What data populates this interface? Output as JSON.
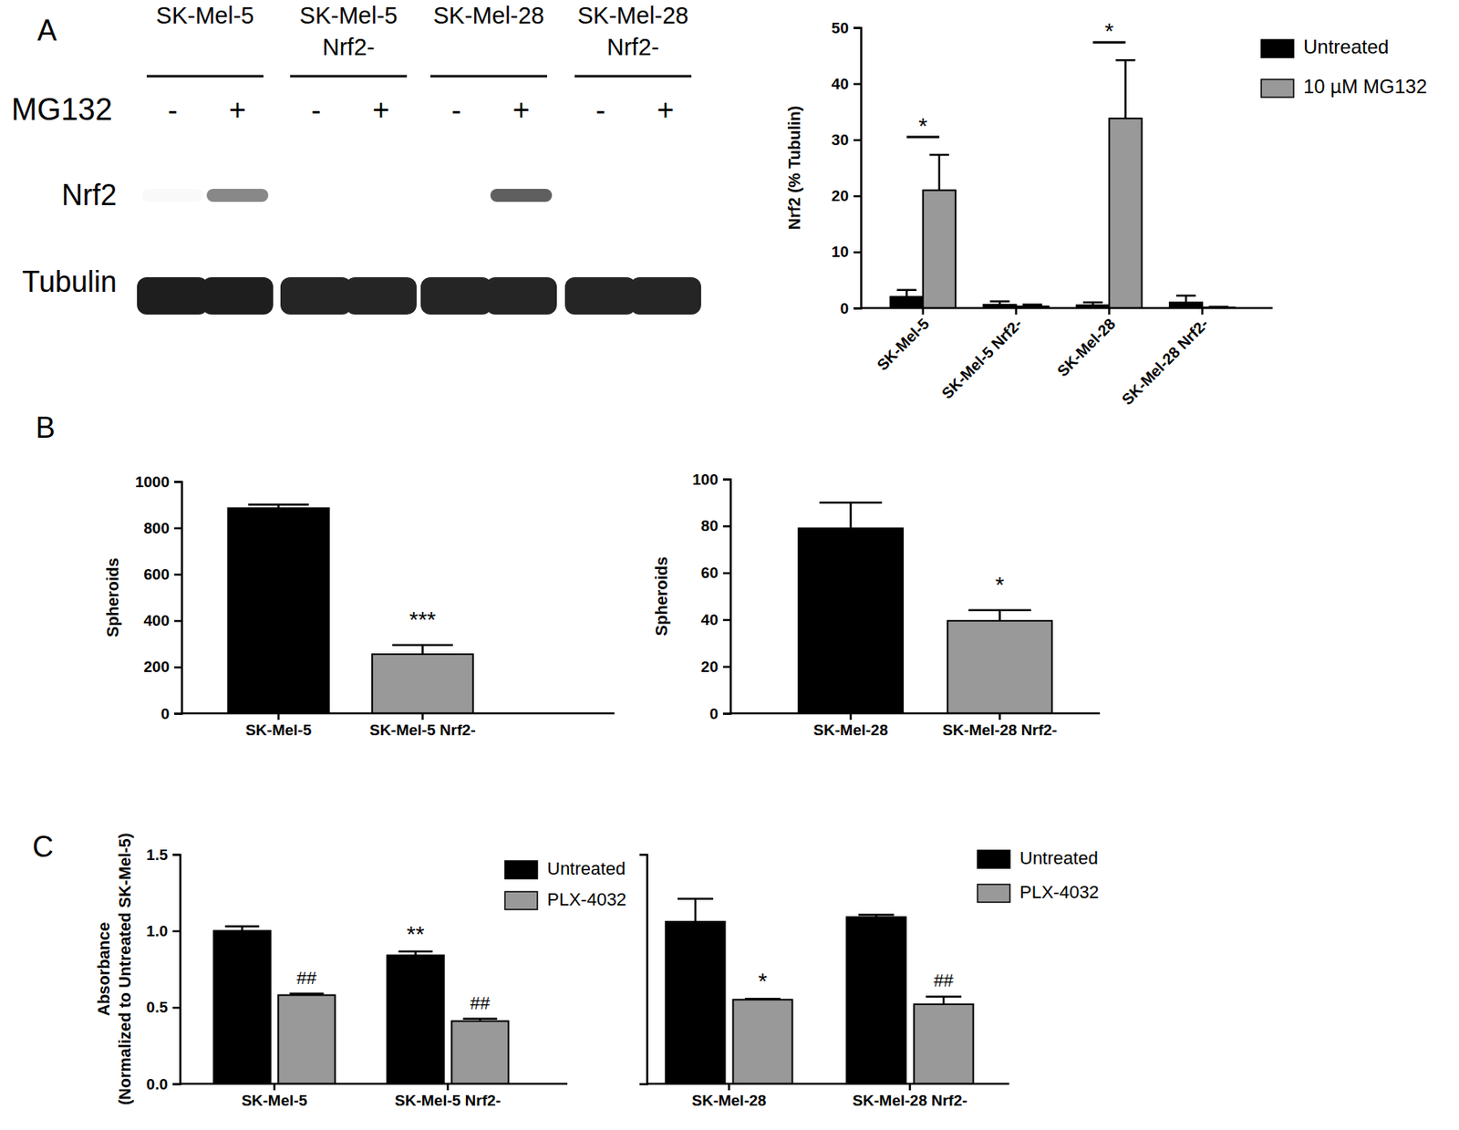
{
  "panel_labels": [
    "A",
    "B",
    "C"
  ],
  "blot": {
    "columns": [
      [
        "SK-Mel-5"
      ],
      [
        "SK-Mel-5",
        "Nrf2-"
      ],
      [
        "SK-Mel-28"
      ],
      [
        "SK-Mel-28",
        "Nrf2-"
      ]
    ],
    "treatment_label": "MG132",
    "treatment": [
      "-",
      "+",
      "-",
      "+",
      "-",
      "+",
      "-",
      "+"
    ],
    "rows": [
      {
        "label": "Nrf2",
        "intensity": [
          0.05,
          0.55,
          0,
          0,
          0,
          0.7,
          0,
          0
        ]
      },
      {
        "label": "Tubulin",
        "intensity": [
          0.9,
          0.9,
          0.88,
          0.88,
          0.88,
          0.88,
          0.88,
          0.88
        ]
      }
    ]
  },
  "chart_data": [
    {
      "type": "bar",
      "categories": [
        "SK-Mel-5",
        "SK-Mel-5 Nrf2-",
        "SK-Mel-28",
        "SK-Mel-28 Nrf2-"
      ],
      "series": [
        {
          "name": "Untreated",
          "color": "#000000",
          "values": [
            2.0,
            0.6,
            0.5,
            1.0
          ],
          "errors": [
            1.2,
            0.6,
            0.5,
            1.2
          ]
        },
        {
          "name": "10 µM MG132",
          "color": "#999999",
          "values": [
            21.0,
            0.3,
            33.8,
            0.1
          ],
          "errors": [
            6.3,
            0.3,
            10.4,
            0.1
          ]
        }
      ],
      "ylabel": "Nrf2 (% Tubulin)",
      "ylim": [
        0,
        50
      ],
      "yticks": [
        0,
        10,
        20,
        30,
        40,
        50
      ],
      "legend": "right",
      "annotations": [
        {
          "text": "*",
          "category": "SK-Mel-5"
        },
        {
          "text": "*",
          "category": "SK-Mel-28"
        }
      ]
    },
    {
      "type": "bar",
      "categories": [
        "SK-Mel-5",
        "SK-Mel-5 Nrf2-"
      ],
      "values": [
        885,
        255
      ],
      "errors": [
        15,
        40
      ],
      "colors": [
        "#000000",
        "#999999"
      ],
      "ylabel": "Spheroids",
      "ylim": [
        0,
        1000
      ],
      "yticks": [
        0,
        200,
        400,
        600,
        800,
        1000
      ],
      "annotations": [
        {
          "text": "***",
          "category": "SK-Mel-5 Nrf2-"
        }
      ]
    },
    {
      "type": "bar",
      "categories": [
        "SK-Mel-28",
        "SK-Mel-28 Nrf2-"
      ],
      "values": [
        79,
        39.5
      ],
      "errors": [
        11,
        4.5
      ],
      "colors": [
        "#000000",
        "#999999"
      ],
      "ylabel": "Spheroids",
      "ylim": [
        0,
        100
      ],
      "yticks": [
        0,
        20,
        40,
        60,
        80,
        100
      ],
      "annotations": [
        {
          "text": "*",
          "category": "SK-Mel-28 Nrf2-"
        }
      ]
    },
    {
      "type": "bar",
      "categories": [
        "SK-Mel-5",
        "SK-Mel-5 Nrf2-"
      ],
      "series": [
        {
          "name": "Untreated",
          "color": "#000000",
          "values": [
            1.0,
            0.84
          ],
          "errors": [
            0.03,
            0.025
          ]
        },
        {
          "name": "PLX-4032",
          "color": "#999999",
          "values": [
            0.58,
            0.41
          ],
          "errors": [
            0.01,
            0.015
          ]
        }
      ],
      "ylabel": [
        "Absorbance",
        "(Normalized to Untreated SK-Mel-5)"
      ],
      "ylim": [
        0,
        1.5
      ],
      "yticks": [
        {
          "value": 0,
          "label": "0.0"
        },
        {
          "value": 0.5,
          "label": "0.5"
        },
        {
          "value": 1,
          "label": "1.0"
        },
        {
          "value": 1.5,
          "label": "1.5"
        }
      ],
      "legend": "top",
      "annotations": [
        {
          "text": "##",
          "category": "SK-Mel-5",
          "series": "PLX-4032"
        },
        {
          "text": "**",
          "category": "SK-Mel-5 Nrf2-",
          "series": "Untreated"
        },
        {
          "text": "##",
          "category": "SK-Mel-5 Nrf2-",
          "series": "PLX-4032"
        }
      ]
    },
    {
      "type": "bar",
      "categories": [
        "SK-Mel-28",
        "SK-Mel-28 Nrf2-"
      ],
      "series": [
        {
          "name": "Untreated",
          "color": "#000000",
          "values": [
            1.06,
            1.09
          ],
          "errors": [
            0.15,
            0.015
          ]
        },
        {
          "name": "PLX-4032",
          "color": "#999999",
          "values": [
            0.55,
            0.52
          ],
          "errors": [
            0.005,
            0.05
          ]
        }
      ],
      "ylim": [
        0,
        1.5
      ],
      "tick_labels": "x",
      "legend": "top",
      "annotations": [
        {
          "text": "*",
          "category": "SK-Mel-28",
          "series": "PLX-4032"
        },
        {
          "text": "##",
          "category": "SK-Mel-28 Nrf2-",
          "series": "PLX-4032"
        }
      ]
    }
  ]
}
